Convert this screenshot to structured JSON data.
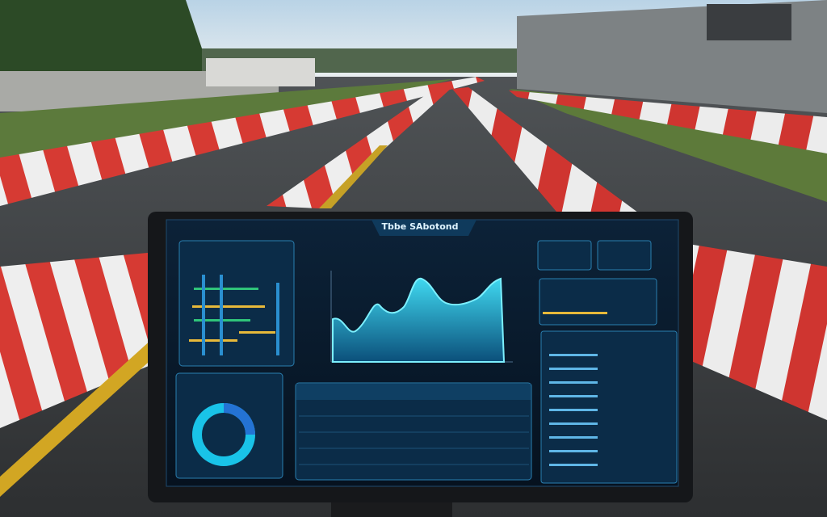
{
  "screen": {
    "title": "Tbbe SAbotond"
  }
}
